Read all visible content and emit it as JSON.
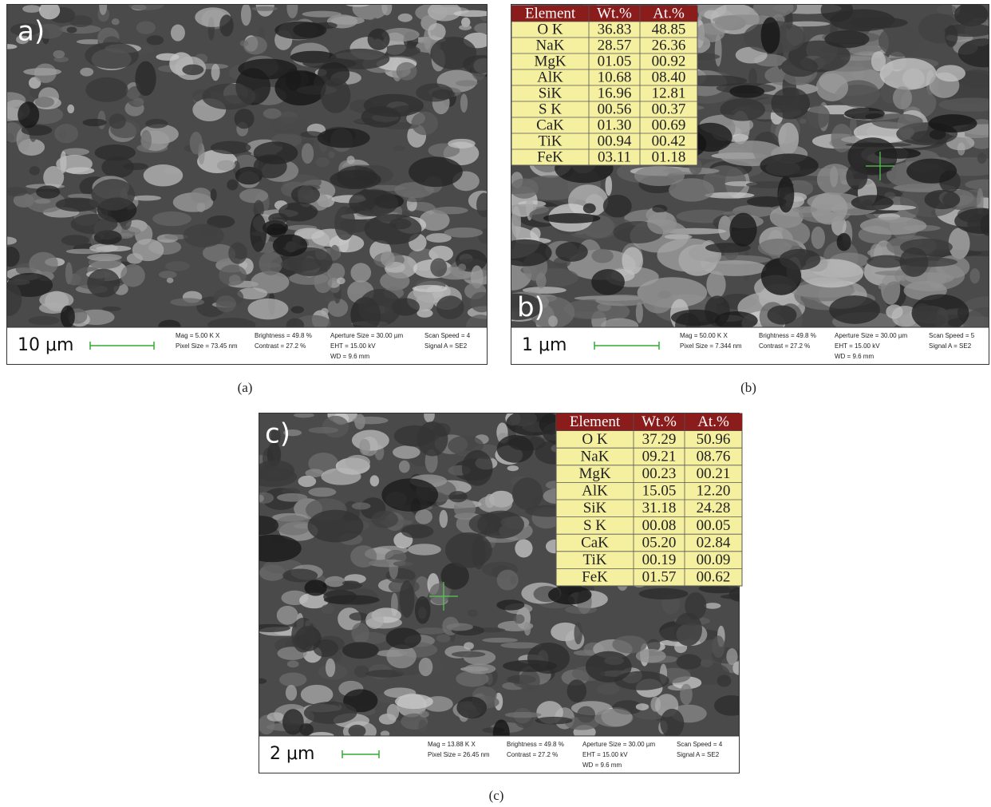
{
  "panels": [
    {
      "label": "a)",
      "caption": "(a)",
      "scale": "10 μm",
      "info": [
        [
          "Mag =  5.00 K X",
          "Pixel Size = 73.45 nm"
        ],
        [
          "Brightness =  49.8 %",
          "Contrast =  27.2 %"
        ],
        [
          "Aperture Size = 30.00 µm",
          "EHT = 15.00 kV",
          "WD =  9.6 mm"
        ],
        [
          "Scan Speed = 4",
          "Signal A = SE2"
        ]
      ]
    },
    {
      "label": "b)",
      "caption": "(b)",
      "scale": "1 μm",
      "info": [
        [
          "Mag =  50.00 K X",
          "Pixel Size = 7.344 nm"
        ],
        [
          "Brightness =  49.8 %",
          "Contrast =  27.2 %"
        ],
        [
          "Aperture Size = 30.00 µm",
          "EHT = 15.00 kV",
          "WD =  9.6 mm"
        ],
        [
          "Scan Speed = 5",
          "Signal A = SE2"
        ]
      ],
      "table": {
        "header": [
          "Element",
          "Wt.%",
          "At.%"
        ],
        "rows": [
          [
            "O K",
            "36.83",
            "48.85"
          ],
          [
            "NaK",
            "28.57",
            "26.36"
          ],
          [
            "MgK",
            "01.05",
            "00.92"
          ],
          [
            "AlK",
            "10.68",
            "08.40"
          ],
          [
            "SiK",
            "16.96",
            "12.81"
          ],
          [
            "S K",
            "00.56",
            "00.37"
          ],
          [
            "CaK",
            "01.30",
            "00.69"
          ],
          [
            "TiK",
            "00.94",
            "00.42"
          ],
          [
            "FeK",
            "03.11",
            "01.18"
          ]
        ]
      }
    },
    {
      "label": "c)",
      "caption": "(c)",
      "scale": "2 μm",
      "info": [
        [
          "Mag =  13.88 K X",
          "Pixel Size = 26.45 nm"
        ],
        [
          "Brightness =  49.8 %",
          "Contrast =  27.2 %"
        ],
        [
          "Aperture Size = 30.00 µm",
          "EHT = 15.00 kV",
          "WD =  9.6 mm"
        ],
        [
          "Scan Speed = 4",
          "Signal A = SE2"
        ]
      ],
      "table": {
        "header": [
          "Element",
          "Wt.%",
          "At.%"
        ],
        "rows": [
          [
            "O K",
            "37.29",
            "50.96"
          ],
          [
            "NaK",
            "09.21",
            "08.76"
          ],
          [
            "MgK",
            "00.23",
            "00.21"
          ],
          [
            "AlK",
            "15.05",
            "12.20"
          ],
          [
            "SiK",
            "31.18",
            "24.28"
          ],
          [
            "S K",
            "00.08",
            "00.05"
          ],
          [
            "CaK",
            "05.20",
            "02.84"
          ],
          [
            "TiK",
            "00.19",
            "00.09"
          ],
          [
            "FeK",
            "01.57",
            "00.62"
          ]
        ]
      }
    }
  ]
}
